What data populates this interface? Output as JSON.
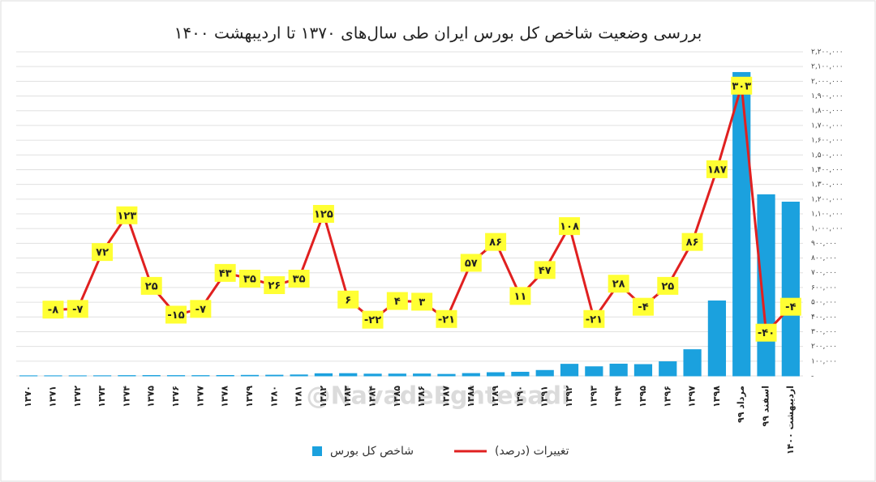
{
  "chart_data": {
    "type": "bar_line",
    "title": "بررسی وضعیت شاخص کل بورس ایران طی سال‌های ۱۳۷۰ تا اردیبهشت ۱۴۰۰",
    "watermark": "@NavadeEghtesadi",
    "categories": [
      "۱۳۷۰",
      "۱۳۷۱",
      "۱۳۷۲",
      "۱۳۷۳",
      "۱۳۷۴",
      "۱۳۷۵",
      "۱۳۷۶",
      "۱۳۷۷",
      "۱۳۷۸",
      "۱۳۷۹",
      "۱۳۸۰",
      "۱۳۸۱",
      "۱۳۸۲",
      "۱۳۸۳",
      "۱۳۸۴",
      "۱۳۸۵",
      "۱۳۸۶",
      "۱۳۸۷",
      "۱۳۸۸",
      "۱۳۸۹",
      "۱۳۹۰",
      "۱۳۹۱",
      "۱۳۹۲",
      "۱۳۹۳",
      "۱۳۹۴",
      "۱۳۹۵",
      "۱۳۹۶",
      "۱۳۹۷",
      "۱۳۹۸",
      "مرداد ۹۹",
      "اسفند ۹۹",
      "اردیبهشت ۱۴۰۰"
    ],
    "series": [
      {
        "name": "شاخص کل بورس",
        "type": "bar",
        "color": "#1ba1de",
        "values": [
          600,
          560,
          520,
          900,
          2000,
          2500,
          2100,
          2000,
          2800,
          3800,
          4800,
          6500,
          14700,
          15600,
          12100,
          12600,
          13000,
          10300,
          16100,
          22000,
          25000,
          37000,
          79000,
          62000,
          80000,
          77000,
          96000,
          178000,
          509000,
          2060000,
          1230000,
          1180000
        ]
      },
      {
        "name": "تغییرات (درصد)",
        "type": "line",
        "axis": "y2",
        "color": "#e02020",
        "values": [
          null,
          -8,
          -7,
          72,
          123,
          25,
          -15,
          -7,
          43,
          35,
          26,
          35,
          125,
          6,
          -22,
          4,
          3,
          -21,
          57,
          86,
          11,
          47,
          108,
          -21,
          28,
          -4,
          25,
          86,
          187,
          303,
          -40,
          -4
        ],
        "value_labels": [
          null,
          "-۸",
          "-۷",
          "۷۲",
          "۱۲۳",
          "۲۵",
          "-۱۵",
          "-۷",
          "۴۳",
          "۳۵",
          "۲۶",
          "۳۵",
          "۱۲۵",
          "۶",
          "-۲۲",
          "۴",
          "۳",
          "-۲۱",
          "۵۷",
          "۸۶",
          "۱۱",
          "۴۷",
          "۱۰۸",
          "-۲۱",
          "۲۸",
          "-۴",
          "۲۵",
          "۸۶",
          "۱۸۷",
          "۳۰۳",
          "-۴۰",
          "-۴"
        ]
      }
    ],
    "ylim": [
      0,
      2200000
    ],
    "yticks": [
      {
        "value": 0,
        "label": "-"
      },
      {
        "value": 100000,
        "label": "۱۰۰,۰۰۰"
      },
      {
        "value": 200000,
        "label": "۲۰۰,۰۰۰"
      },
      {
        "value": 300000,
        "label": "۳۰۰,۰۰۰"
      },
      {
        "value": 400000,
        "label": "۴۰۰,۰۰۰"
      },
      {
        "value": 500000,
        "label": "۵۰۰,۰۰۰"
      },
      {
        "value": 600000,
        "label": "۶۰۰,۰۰۰"
      },
      {
        "value": 700000,
        "label": "۷۰۰,۰۰۰"
      },
      {
        "value": 800000,
        "label": "۸۰۰,۰۰۰"
      },
      {
        "value": 900000,
        "label": "۹۰۰,۰۰۰"
      },
      {
        "value": 1000000,
        "label": "۱,۰۰۰,۰۰۰"
      },
      {
        "value": 1100000,
        "label": "۱,۱۰۰,۰۰۰"
      },
      {
        "value": 1200000,
        "label": "۱,۲۰۰,۰۰۰"
      },
      {
        "value": 1300000,
        "label": "۱,۳۰۰,۰۰۰"
      },
      {
        "value": 1400000,
        "label": "۱,۴۰۰,۰۰۰"
      },
      {
        "value": 1500000,
        "label": "۱,۵۰۰,۰۰۰"
      },
      {
        "value": 1600000,
        "label": "۱,۶۰۰,۰۰۰"
      },
      {
        "value": 1700000,
        "label": "۱,۷۰۰,۰۰۰"
      },
      {
        "value": 1800000,
        "label": "۱,۸۰۰,۰۰۰"
      },
      {
        "value": 1900000,
        "label": "۱,۹۰۰,۰۰۰"
      },
      {
        "value": 2000000,
        "label": "۲,۰۰۰,۰۰۰"
      },
      {
        "value": 2100000,
        "label": "۲,۱۰۰,۰۰۰"
      },
      {
        "value": 2200000,
        "label": "۲,۲۰۰,۰۰۰"
      }
    ],
    "y2lim": [
      -100,
      350
    ],
    "grid": true,
    "legend": "bottom"
  }
}
